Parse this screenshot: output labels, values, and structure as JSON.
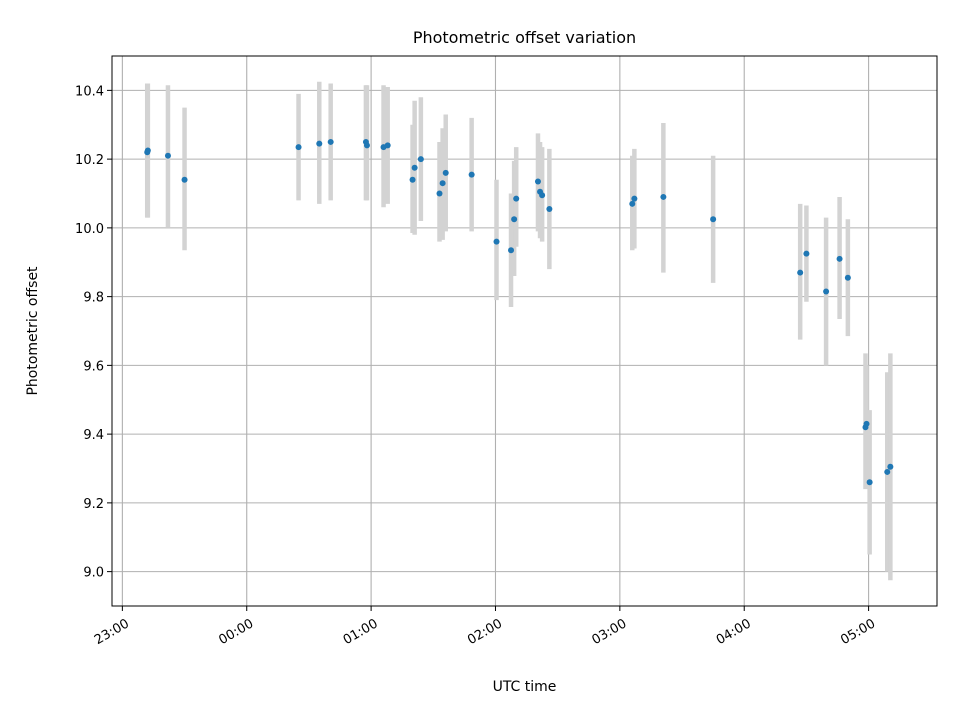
{
  "chart_data": {
    "type": "scatter",
    "title": "Photometric offset variation",
    "xlabel": "UTC time",
    "ylabel": "Photometric offset",
    "x_unit": "minutes after 23:00 UTC",
    "xlim": [
      -5,
      393
    ],
    "ylim": [
      8.9,
      10.5
    ],
    "x_ticks": [
      {
        "label": "23:00",
        "value": 0
      },
      {
        "label": "00:00",
        "value": 60
      },
      {
        "label": "01:00",
        "value": 120
      },
      {
        "label": "02:00",
        "value": 180
      },
      {
        "label": "03:00",
        "value": 240
      },
      {
        "label": "04:00",
        "value": 300
      },
      {
        "label": "05:00",
        "value": 360
      }
    ],
    "y_ticks": [
      {
        "label": "9.0",
        "value": 9.0
      },
      {
        "label": "9.2",
        "value": 9.2
      },
      {
        "label": "9.4",
        "value": 9.4
      },
      {
        "label": "9.6",
        "value": 9.6
      },
      {
        "label": "9.8",
        "value": 9.8
      },
      {
        "label": "10.0",
        "value": 10.0
      },
      {
        "label": "10.2",
        "value": 10.2
      },
      {
        "label": "10.4",
        "value": 10.4
      }
    ],
    "grid": true,
    "colors": {
      "point": "#1f77b4",
      "error_bar": "#d3d3d3",
      "grid": "#b0b0b0"
    },
    "points": [
      {
        "x": 12.0,
        "y": 10.22,
        "lo": 10.03,
        "hi": 10.42
      },
      {
        "x": 12.3,
        "y": 10.225,
        "lo": 10.03,
        "hi": 10.42
      },
      {
        "x": 22.0,
        "y": 10.21,
        "lo": 10.0,
        "hi": 10.415
      },
      {
        "x": 30.0,
        "y": 10.14,
        "lo": 9.935,
        "hi": 10.35
      },
      {
        "x": 85.0,
        "y": 10.235,
        "lo": 10.08,
        "hi": 10.39
      },
      {
        "x": 95.0,
        "y": 10.245,
        "lo": 10.07,
        "hi": 10.425
      },
      {
        "x": 100.5,
        "y": 10.25,
        "lo": 10.08,
        "hi": 10.42
      },
      {
        "x": 117.5,
        "y": 10.25,
        "lo": 10.08,
        "hi": 10.415
      },
      {
        "x": 118.0,
        "y": 10.24,
        "lo": 10.08,
        "hi": 10.415
      },
      {
        "x": 126.0,
        "y": 10.235,
        "lo": 10.06,
        "hi": 10.415
      },
      {
        "x": 128.0,
        "y": 10.24,
        "lo": 10.07,
        "hi": 10.41
      },
      {
        "x": 140.0,
        "y": 10.14,
        "lo": 9.985,
        "hi": 10.3
      },
      {
        "x": 141.0,
        "y": 10.175,
        "lo": 9.98,
        "hi": 10.37
      },
      {
        "x": 144.0,
        "y": 10.2,
        "lo": 10.02,
        "hi": 10.38
      },
      {
        "x": 153.0,
        "y": 10.1,
        "lo": 9.96,
        "hi": 10.25
      },
      {
        "x": 154.5,
        "y": 10.13,
        "lo": 9.965,
        "hi": 10.29
      },
      {
        "x": 156.0,
        "y": 10.16,
        "lo": 9.99,
        "hi": 10.33
      },
      {
        "x": 168.5,
        "y": 10.155,
        "lo": 9.99,
        "hi": 10.32
      },
      {
        "x": 180.5,
        "y": 9.96,
        "lo": 9.79,
        "hi": 10.14
      },
      {
        "x": 187.5,
        "y": 9.935,
        "lo": 9.77,
        "hi": 10.1
      },
      {
        "x": 189.0,
        "y": 10.025,
        "lo": 9.86,
        "hi": 10.195
      },
      {
        "x": 190.0,
        "y": 10.085,
        "lo": 9.945,
        "hi": 10.235
      },
      {
        "x": 200.5,
        "y": 10.135,
        "lo": 9.99,
        "hi": 10.275
      },
      {
        "x": 201.5,
        "y": 10.105,
        "lo": 9.97,
        "hi": 10.25
      },
      {
        "x": 202.5,
        "y": 10.095,
        "lo": 9.96,
        "hi": 10.235
      },
      {
        "x": 206.0,
        "y": 10.055,
        "lo": 9.88,
        "hi": 10.23
      },
      {
        "x": 246.0,
        "y": 10.07,
        "lo": 9.935,
        "hi": 10.21
      },
      {
        "x": 247.0,
        "y": 10.085,
        "lo": 9.94,
        "hi": 10.23
      },
      {
        "x": 261.0,
        "y": 10.09,
        "lo": 9.87,
        "hi": 10.305
      },
      {
        "x": 285.0,
        "y": 10.025,
        "lo": 9.84,
        "hi": 10.21
      },
      {
        "x": 327.0,
        "y": 9.87,
        "lo": 9.675,
        "hi": 10.07
      },
      {
        "x": 330.0,
        "y": 9.925,
        "lo": 9.785,
        "hi": 10.065
      },
      {
        "x": 339.5,
        "y": 9.815,
        "lo": 9.6,
        "hi": 10.03
      },
      {
        "x": 346.0,
        "y": 9.91,
        "lo": 9.735,
        "hi": 10.09
      },
      {
        "x": 350.0,
        "y": 9.855,
        "lo": 9.685,
        "hi": 10.025
      },
      {
        "x": 358.5,
        "y": 9.42,
        "lo": 9.24,
        "hi": 9.635
      },
      {
        "x": 359.0,
        "y": 9.43,
        "lo": 9.25,
        "hi": 9.6
      },
      {
        "x": 360.5,
        "y": 9.26,
        "lo": 9.05,
        "hi": 9.47
      },
      {
        "x": 369.0,
        "y": 9.29,
        "lo": 9.0,
        "hi": 9.58
      },
      {
        "x": 370.5,
        "y": 9.305,
        "lo": 8.975,
        "hi": 9.635
      }
    ]
  }
}
